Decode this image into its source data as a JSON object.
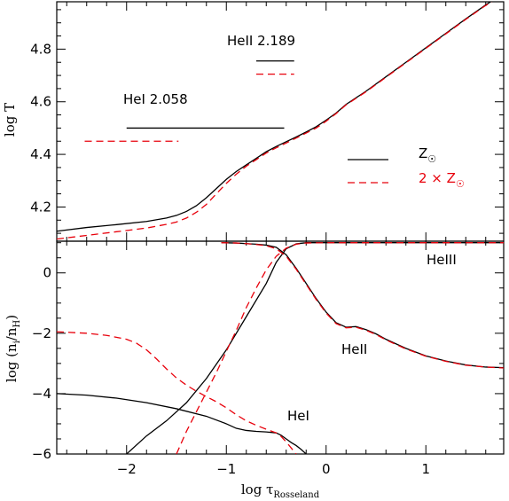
{
  "chart_data": [
    {
      "type": "line",
      "panel": "top",
      "xlabel": "log τRosseland",
      "ylabel": "log T",
      "xlim": [
        -2.7,
        1.78
      ],
      "ylim": [
        4.07,
        4.98
      ],
      "yticks": [
        4.2,
        4.4,
        4.6,
        4.8
      ],
      "ytick_labels": [
        "4.2",
        "4.4",
        "4.6",
        "4.8"
      ],
      "legend_position": "lower-right",
      "legend": [
        {
          "label": "Z",
          "color": "#000000",
          "style": "solid"
        },
        {
          "label": "2 × Z",
          "color": "#e8000b",
          "style": "dashed"
        }
      ],
      "annotations": [
        {
          "text": "HeII  2.189",
          "color": "#000000"
        },
        {
          "text": "HeI  2.058",
          "color": "#000000"
        }
      ],
      "lines": [
        {
          "name": "HeII 2.189 Z",
          "color": "#000000",
          "style": "solid",
          "x": [
            -0.7,
            -0.32
          ],
          "y": [
            4.755,
            4.755
          ]
        },
        {
          "name": "HeII 2.189 2Z",
          "color": "#e8000b",
          "style": "dashed",
          "x": [
            -0.7,
            -0.32
          ],
          "y": [
            4.705,
            4.705
          ]
        },
        {
          "name": "HeI 2.058 Z",
          "color": "#000000",
          "style": "solid",
          "x": [
            -2.0,
            -0.42
          ],
          "y": [
            4.5,
            4.5
          ]
        },
        {
          "name": "HeI 2.058 2Z",
          "color": "#e8000b",
          "style": "dashed",
          "x": [
            -2.42,
            -1.48
          ],
          "y": [
            4.45,
            4.45
          ]
        }
      ],
      "series": [
        {
          "name": "Z",
          "color": "#000000",
          "style": "solid",
          "x": [
            -2.7,
            -2.4,
            -2.1,
            -1.8,
            -1.6,
            -1.5,
            -1.4,
            -1.3,
            -1.2,
            -1.1,
            -1.0,
            -0.9,
            -0.8,
            -0.7,
            -0.6,
            -0.5,
            -0.4,
            -0.3,
            -0.2,
            -0.1,
            0.0,
            0.1,
            0.2,
            0.3,
            0.4,
            0.6,
            0.8,
            1.0,
            1.2,
            1.4,
            1.6,
            1.75
          ],
          "y": [
            4.108,
            4.122,
            4.133,
            4.145,
            4.158,
            4.168,
            4.183,
            4.205,
            4.235,
            4.27,
            4.305,
            4.335,
            4.36,
            4.385,
            4.41,
            4.43,
            4.448,
            4.466,
            4.485,
            4.505,
            4.53,
            4.557,
            4.59,
            4.615,
            4.64,
            4.695,
            4.75,
            4.805,
            4.86,
            4.915,
            4.968,
            5.005
          ]
        },
        {
          "name": "2 × Z",
          "color": "#e8000b",
          "style": "dashed",
          "x": [
            -2.7,
            -2.4,
            -2.1,
            -1.8,
            -1.6,
            -1.5,
            -1.4,
            -1.3,
            -1.2,
            -1.1,
            -1.0,
            -0.9,
            -0.8,
            -0.7,
            -0.6,
            -0.5,
            -0.4,
            -0.3,
            -0.2,
            -0.1,
            0.0,
            0.1,
            0.2,
            0.3,
            0.4,
            0.6,
            0.8,
            1.0,
            1.2,
            1.4,
            1.6,
            1.75
          ],
          "y": [
            4.078,
            4.092,
            4.106,
            4.12,
            4.134,
            4.143,
            4.158,
            4.18,
            4.21,
            4.25,
            4.29,
            4.325,
            4.355,
            4.38,
            4.405,
            4.425,
            4.443,
            4.462,
            4.481,
            4.5,
            4.526,
            4.555,
            4.588,
            4.613,
            4.638,
            4.693,
            4.748,
            4.803,
            4.858,
            4.913,
            4.966,
            5.003
          ]
        }
      ]
    },
    {
      "type": "line",
      "panel": "bottom",
      "xlabel": "log τRosseland",
      "ylabel": "log (ni/nH)",
      "xlim": [
        -2.7,
        1.78
      ],
      "ylim": [
        -6.0,
        1.05
      ],
      "xticks": [
        -2,
        -1,
        0,
        1
      ],
      "xtick_labels": [
        "−2",
        "−1",
        "0",
        "1"
      ],
      "yticks": [
        -6,
        -4,
        -2,
        0
      ],
      "ytick_labels": [
        "−6",
        "−4",
        "−2",
        "0"
      ],
      "annotations": [
        {
          "text": "HeIII",
          "color": "#000000"
        },
        {
          "text": "HeII",
          "color": "#000000"
        },
        {
          "text": "HeI",
          "color": "#000000"
        }
      ],
      "series": [
        {
          "name": "HeIII Z",
          "color": "#000000",
          "style": "solid",
          "x": [
            -2.0,
            -1.8,
            -1.6,
            -1.4,
            -1.2,
            -1.0,
            -0.8,
            -0.6,
            -0.5,
            -0.4,
            -0.3,
            -0.2,
            0.0,
            0.4,
            1.0,
            1.78
          ],
          "y": [
            -6.0,
            -5.4,
            -4.9,
            -4.3,
            -3.5,
            -2.55,
            -1.45,
            -0.35,
            0.35,
            0.8,
            0.96,
            1.0,
            1.0,
            1.0,
            1.0,
            1.0
          ]
        },
        {
          "name": "HeIII 2Z",
          "color": "#e8000b",
          "style": "dashed",
          "x": [
            -1.5,
            -1.4,
            -1.3,
            -1.2,
            -1.1,
            -1.0,
            -0.9,
            -0.8,
            -0.7,
            -0.6,
            -0.5,
            -0.4,
            -0.3,
            -0.2,
            0.0,
            0.4,
            1.0,
            1.78
          ],
          "y": [
            -6.0,
            -5.25,
            -4.6,
            -3.95,
            -3.3,
            -2.6,
            -1.9,
            -1.15,
            -0.5,
            0.1,
            0.55,
            0.82,
            0.95,
            0.99,
            1.0,
            1.0,
            1.0,
            1.0
          ]
        },
        {
          "name": "HeII Z",
          "color": "#000000",
          "style": "solid",
          "x": [
            -1.05,
            -0.9,
            -0.8,
            -0.7,
            -0.6,
            -0.5,
            -0.4,
            -0.3,
            -0.2,
            -0.1,
            0.0,
            0.1,
            0.2,
            0.3,
            0.4,
            0.5,
            0.6,
            0.8,
            1.0,
            1.2,
            1.4,
            1.6,
            1.78
          ],
          "y": [
            1.0,
            0.99,
            0.97,
            0.95,
            0.92,
            0.85,
            0.6,
            0.15,
            -0.35,
            -0.85,
            -1.3,
            -1.65,
            -1.8,
            -1.78,
            -1.88,
            -2.02,
            -2.2,
            -2.5,
            -2.75,
            -2.92,
            -3.05,
            -3.12,
            -3.14
          ]
        },
        {
          "name": "HeII 2Z",
          "color": "#e8000b",
          "style": "dashed",
          "x": [
            -1.05,
            -0.9,
            -0.8,
            -0.7,
            -0.6,
            -0.5,
            -0.4,
            -0.3,
            -0.2,
            -0.1,
            0.0,
            0.1,
            0.2,
            0.3,
            0.4,
            0.5,
            0.6,
            0.8,
            1.0,
            1.2,
            1.4,
            1.6,
            1.78
          ],
          "y": [
            1.0,
            0.99,
            0.97,
            0.94,
            0.9,
            0.8,
            0.55,
            0.12,
            -0.38,
            -0.88,
            -1.33,
            -1.68,
            -1.82,
            -1.8,
            -1.9,
            -2.04,
            -2.22,
            -2.52,
            -2.76,
            -2.93,
            -3.06,
            -3.12,
            -3.15
          ]
        },
        {
          "name": "HeI Z",
          "color": "#000000",
          "style": "solid",
          "x": [
            -2.7,
            -2.4,
            -2.1,
            -1.8,
            -1.5,
            -1.2,
            -1.0,
            -0.9,
            -0.8,
            -0.7,
            -0.6,
            -0.5,
            -0.45,
            -0.4,
            -0.35,
            -0.3,
            -0.25,
            -0.2
          ],
          "y": [
            -4.0,
            -4.05,
            -4.15,
            -4.3,
            -4.5,
            -4.75,
            -5.0,
            -5.15,
            -5.22,
            -5.25,
            -5.27,
            -5.3,
            -5.38,
            -5.5,
            -5.62,
            -5.72,
            -5.85,
            -6.0
          ]
        },
        {
          "name": "HeI 2Z",
          "color": "#e8000b",
          "style": "dashed",
          "x": [
            -2.7,
            -2.4,
            -2.2,
            -2.0,
            -1.9,
            -1.8,
            -1.7,
            -1.6,
            -1.5,
            -1.4,
            -1.3,
            -1.2,
            -1.1,
            -1.0,
            -0.9,
            -0.8,
            -0.7,
            -0.6,
            -0.5,
            -0.45,
            -0.4,
            -0.35,
            -0.3
          ],
          "y": [
            -1.95,
            -2.0,
            -2.07,
            -2.2,
            -2.33,
            -2.55,
            -2.85,
            -3.18,
            -3.48,
            -3.72,
            -3.92,
            -4.1,
            -4.27,
            -4.47,
            -4.7,
            -4.9,
            -5.05,
            -5.18,
            -5.3,
            -5.42,
            -5.6,
            -5.8,
            -6.0
          ]
        }
      ]
    }
  ]
}
